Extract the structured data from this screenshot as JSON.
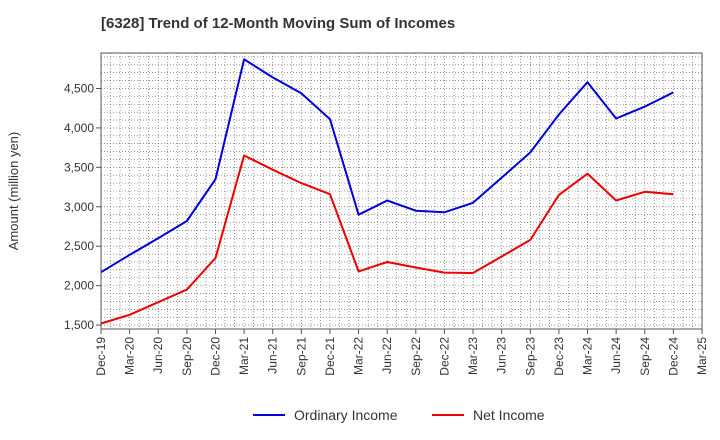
{
  "chart_data": {
    "type": "line",
    "title": "[6328]  Trend of 12-Month Moving Sum of Incomes",
    "xlabel": "",
    "ylabel": "Amount (million yen)",
    "ylim": [
      1450,
      4950
    ],
    "yticks": [
      1500,
      2000,
      2500,
      3000,
      3500,
      4000,
      4500
    ],
    "ytick_labels": [
      "1,500",
      "2,000",
      "2,500",
      "3,000",
      "3,500",
      "4,000",
      "4,500"
    ],
    "grid": true,
    "legend_position": "bottom-center",
    "categories": [
      "Dec-19",
      "Mar-20",
      "Jun-20",
      "Sep-20",
      "Dec-20",
      "Mar-21",
      "Jun-21",
      "Sep-21",
      "Dec-21",
      "Mar-22",
      "Jun-22",
      "Sep-22",
      "Dec-22",
      "Mar-23",
      "Jun-23",
      "Sep-23",
      "Dec-23",
      "Mar-24",
      "Jun-24",
      "Sep-24",
      "Dec-24",
      "Mar-25"
    ],
    "series": [
      {
        "name": "Ordinary Income",
        "color": "#0000dd",
        "values": [
          2170,
          2390,
          2600,
          2820,
          3350,
          4870,
          4640,
          4440,
          4110,
          2900,
          3080,
          2950,
          2930,
          3050,
          3370,
          3690,
          4170,
          4580,
          4120,
          4270,
          4450,
          null
        ]
      },
      {
        "name": "Net Income",
        "color": "#ee0000",
        "values": [
          1520,
          1630,
          1790,
          1950,
          2350,
          3650,
          3470,
          3300,
          3160,
          2180,
          2300,
          2230,
          2165,
          2160,
          2370,
          2580,
          3150,
          3420,
          3080,
          3190,
          3160,
          null
        ]
      }
    ]
  }
}
